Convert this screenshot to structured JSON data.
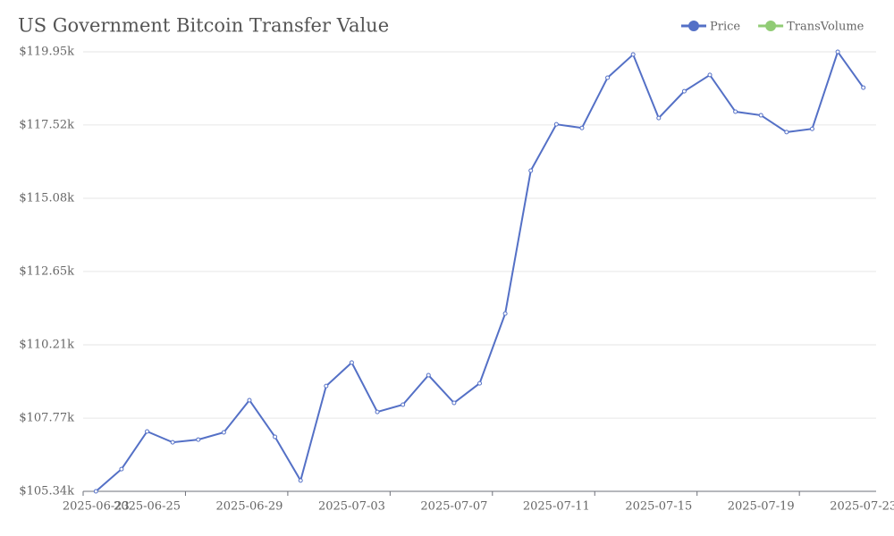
{
  "chart_data": {
    "type": "line",
    "title": "US Government Bitcoin Transfer Value",
    "categories": [
      "2025-06-23",
      null,
      "2025-06-25",
      null,
      null,
      null,
      "2025-06-29",
      null,
      null,
      null,
      "2025-07-03",
      null,
      null,
      null,
      "2025-07-07",
      null,
      null,
      null,
      "2025-07-11",
      null,
      null,
      null,
      "2025-07-15",
      null,
      null,
      null,
      "2025-07-19",
      null,
      null,
      null,
      "2025-07-23"
    ],
    "series": [
      {
        "name": "Price",
        "color": "#5470c6",
        "values": [
          105.34,
          106.08,
          107.33,
          106.97,
          107.06,
          107.3,
          108.37,
          107.15,
          105.7,
          108.84,
          109.62,
          107.98,
          108.22,
          109.2,
          108.28,
          108.93,
          111.25,
          116.0,
          117.54,
          117.42,
          119.09,
          119.86,
          117.75,
          118.64,
          119.18,
          117.96,
          117.84,
          117.28,
          117.39,
          119.95,
          118.76
        ]
      },
      {
        "name": "TransVolume",
        "color": "#91cc75",
        "values": [
          null,
          null,
          null,
          null,
          null,
          null,
          null,
          null,
          null,
          null,
          null,
          null,
          null,
          null,
          null,
          null,
          null,
          null,
          null,
          null,
          null,
          null,
          null,
          null,
          null,
          null,
          null,
          null,
          null,
          null,
          null
        ]
      }
    ],
    "ylim": [
      105.34,
      119.95
    ],
    "yticks": [
      {
        "value": 105.34,
        "label": "$105.34k"
      },
      {
        "value": 107.77,
        "label": "$107.77k"
      },
      {
        "value": 110.21,
        "label": "$110.21k"
      },
      {
        "value": 112.65,
        "label": "$112.65k"
      },
      {
        "value": 115.08,
        "label": "$115.08k"
      },
      {
        "value": 117.52,
        "label": "$117.52k"
      },
      {
        "value": 119.95,
        "label": "$119.95k"
      }
    ],
    "grid": true
  }
}
